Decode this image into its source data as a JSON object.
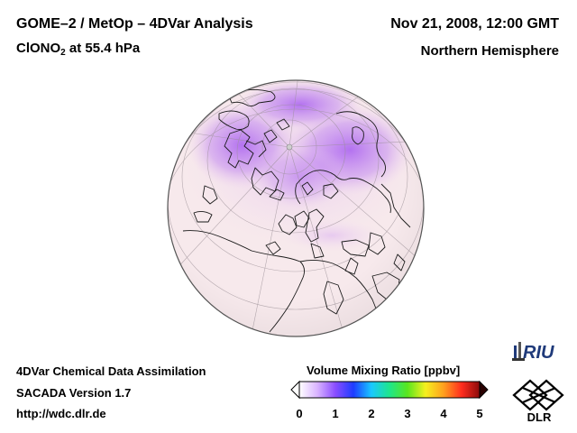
{
  "header": {
    "title_line1": "GOME–2 / MetOp – 4DVar Analysis",
    "species_prefix": "ClONO",
    "species_sub": "2",
    "species_suffix": " at 55.4 hPa",
    "date": "Nov 21, 2008, 12:00 GMT",
    "region": "Northern Hemisphere"
  },
  "footer": {
    "line1": "4DVar Chemical Data Assimilation",
    "line2": "SACADA Version 1.7",
    "line3": "http://wdc.dlr.de"
  },
  "colorbar": {
    "title": "Volume Mixing Ratio [ppbv]",
    "ticks": [
      "0",
      "1",
      "2",
      "3",
      "4",
      "5"
    ],
    "range": [
      0,
      5
    ],
    "colors": [
      "#ffffff",
      "#d9b3ff",
      "#8a4dff",
      "#1e3cff",
      "#19c8ff",
      "#1ee68c",
      "#5ae61e",
      "#f5f01e",
      "#ffa01e",
      "#ff2d1e",
      "#8c0a0a"
    ]
  },
  "map": {
    "projection": "orthographic",
    "hemisphere": "north",
    "background_color": "#f7e9ec",
    "high_color": "#b26ae8"
  },
  "logos": {
    "riu": "RIU",
    "dlr": "DLR"
  }
}
